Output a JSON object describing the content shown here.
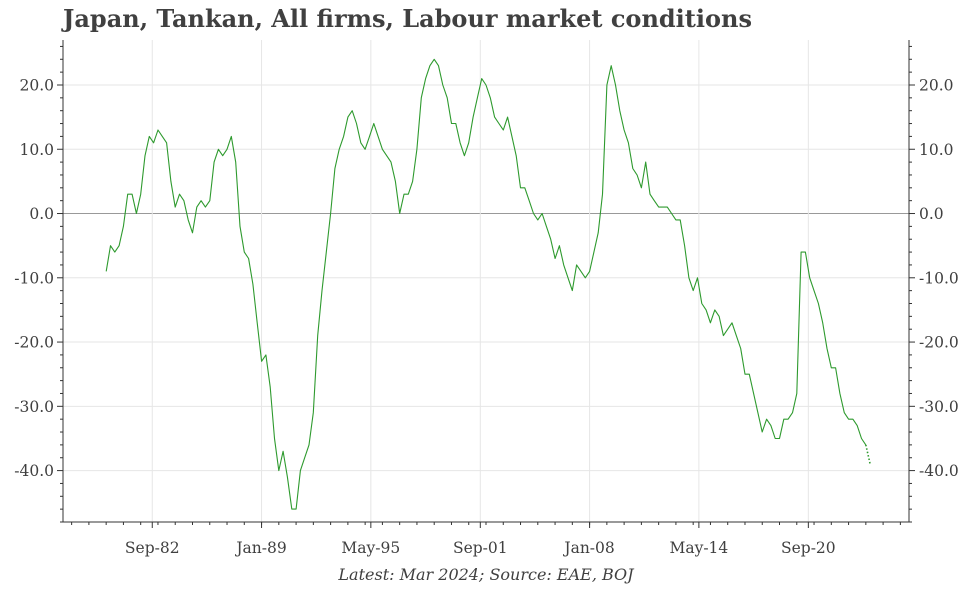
{
  "title": "Japan, Tankan, All firms, Labour market conditions",
  "footnote": "Latest: Mar 2024; Source: EAE, BOJ",
  "colors": {
    "line": "#2e9a2e",
    "axis": "#333333",
    "grid": "#e6e6e6",
    "zero": "#999999",
    "text": "#404040"
  },
  "chart_data": {
    "type": "line",
    "title": "Japan, Tankan, All firms, Labour market conditions",
    "xlabel": "",
    "ylabel": "",
    "ylim": [
      -48,
      27
    ],
    "xlim": [
      1977.5,
      2026.5
    ],
    "grid": true,
    "legend": "none",
    "y_ticks": [
      -40,
      -30,
      -20,
      -10,
      0,
      10,
      20
    ],
    "y_tick_labels": [
      "-40.0",
      "-30.0",
      "-20.0",
      "-10.0",
      "0.0",
      "10.0",
      "20.0"
    ],
    "x_ticks": [
      1982.67,
      1989.0,
      1995.33,
      2001.67,
      2008.0,
      2014.33,
      2020.67
    ],
    "x_tick_labels": [
      "Sep-82",
      "Jan-89",
      "May-95",
      "Sep-01",
      "Jan-08",
      "May-14",
      "Sep-20"
    ],
    "series": [
      {
        "values": [
          [
            1980.0,
            -9
          ],
          [
            1980.25,
            -5
          ],
          [
            1980.5,
            -6
          ],
          [
            1980.75,
            -5
          ],
          [
            1981.0,
            -2
          ],
          [
            1981.25,
            3
          ],
          [
            1981.5,
            3
          ],
          [
            1981.75,
            0
          ],
          [
            1982.0,
            3
          ],
          [
            1982.25,
            9
          ],
          [
            1982.5,
            12
          ],
          [
            1982.75,
            11
          ],
          [
            1983.0,
            13
          ],
          [
            1983.25,
            12
          ],
          [
            1983.5,
            11
          ],
          [
            1983.75,
            5
          ],
          [
            1984.0,
            1
          ],
          [
            1984.25,
            3
          ],
          [
            1984.5,
            2
          ],
          [
            1984.75,
            -1
          ],
          [
            1985.0,
            -3
          ],
          [
            1985.25,
            1
          ],
          [
            1985.5,
            2
          ],
          [
            1985.75,
            1
          ],
          [
            1986.0,
            2
          ],
          [
            1986.25,
            8
          ],
          [
            1986.5,
            10
          ],
          [
            1986.75,
            9
          ],
          [
            1987.0,
            10
          ],
          [
            1987.25,
            12
          ],
          [
            1987.5,
            8
          ],
          [
            1987.75,
            -2
          ],
          [
            1988.0,
            -6
          ],
          [
            1988.25,
            -7
          ],
          [
            1988.5,
            -11
          ],
          [
            1988.75,
            -17
          ],
          [
            1989.0,
            -23
          ],
          [
            1989.25,
            -22
          ],
          [
            1989.5,
            -27
          ],
          [
            1989.75,
            -35
          ],
          [
            1990.0,
            -40
          ],
          [
            1990.25,
            -37
          ],
          [
            1990.5,
            -41
          ],
          [
            1990.75,
            -46
          ],
          [
            1991.0,
            -46
          ],
          [
            1991.25,
            -40
          ],
          [
            1991.5,
            -38
          ],
          [
            1991.75,
            -36
          ],
          [
            1992.0,
            -31
          ],
          [
            1992.25,
            -19
          ],
          [
            1992.5,
            -12
          ],
          [
            1992.75,
            -6
          ],
          [
            1993.0,
            0
          ],
          [
            1993.25,
            7
          ],
          [
            1993.5,
            10
          ],
          [
            1993.75,
            12
          ],
          [
            1994.0,
            15
          ],
          [
            1994.25,
            16
          ],
          [
            1994.5,
            14
          ],
          [
            1994.75,
            11
          ],
          [
            1995.0,
            10
          ],
          [
            1995.25,
            12
          ],
          [
            1995.5,
            14
          ],
          [
            1995.75,
            12
          ],
          [
            1996.0,
            10
          ],
          [
            1996.25,
            9
          ],
          [
            1996.5,
            8
          ],
          [
            1996.75,
            5
          ],
          [
            1997.0,
            0
          ],
          [
            1997.25,
            3
          ],
          [
            1997.5,
            3
          ],
          [
            1997.75,
            5
          ],
          [
            1998.0,
            10
          ],
          [
            1998.25,
            18
          ],
          [
            1998.5,
            21
          ],
          [
            1998.75,
            23
          ],
          [
            1999.0,
            24
          ],
          [
            1999.25,
            23
          ],
          [
            1999.5,
            20
          ],
          [
            1999.75,
            18
          ],
          [
            2000.0,
            14
          ],
          [
            2000.25,
            14
          ],
          [
            2000.5,
            11
          ],
          [
            2000.75,
            9
          ],
          [
            2001.0,
            11
          ],
          [
            2001.25,
            15
          ],
          [
            2001.5,
            18
          ],
          [
            2001.75,
            21
          ],
          [
            2002.0,
            20
          ],
          [
            2002.25,
            18
          ],
          [
            2002.5,
            15
          ],
          [
            2002.75,
            14
          ],
          [
            2003.0,
            13
          ],
          [
            2003.25,
            15
          ],
          [
            2003.5,
            12
          ],
          [
            2003.75,
            9
          ],
          [
            2004.0,
            4
          ],
          [
            2004.25,
            4
          ],
          [
            2004.5,
            2
          ],
          [
            2004.75,
            0
          ],
          [
            2005.0,
            -1
          ],
          [
            2005.25,
            0
          ],
          [
            2005.5,
            -2
          ],
          [
            2005.75,
            -4
          ],
          [
            2006.0,
            -7
          ],
          [
            2006.25,
            -5
          ],
          [
            2006.5,
            -8
          ],
          [
            2006.75,
            -10
          ],
          [
            2007.0,
            -12
          ],
          [
            2007.25,
            -8
          ],
          [
            2007.5,
            -9
          ],
          [
            2007.75,
            -10
          ],
          [
            2008.0,
            -9
          ],
          [
            2008.25,
            -6
          ],
          [
            2008.5,
            -3
          ],
          [
            2008.75,
            3
          ],
          [
            2009.0,
            20
          ],
          [
            2009.25,
            23
          ],
          [
            2009.5,
            20
          ],
          [
            2009.75,
            16
          ],
          [
            2010.0,
            13
          ],
          [
            2010.25,
            11
          ],
          [
            2010.5,
            7
          ],
          [
            2010.75,
            6
          ],
          [
            2011.0,
            4
          ],
          [
            2011.25,
            8
          ],
          [
            2011.5,
            3
          ],
          [
            2011.75,
            2
          ],
          [
            2012.0,
            1
          ],
          [
            2012.25,
            1
          ],
          [
            2012.5,
            1
          ],
          [
            2012.75,
            0
          ],
          [
            2013.0,
            -1
          ],
          [
            2013.25,
            -1
          ],
          [
            2013.5,
            -5
          ],
          [
            2013.75,
            -10
          ],
          [
            2014.0,
            -12
          ],
          [
            2014.25,
            -10
          ],
          [
            2014.5,
            -14
          ],
          [
            2014.75,
            -15
          ],
          [
            2015.0,
            -17
          ],
          [
            2015.25,
            -15
          ],
          [
            2015.5,
            -16
          ],
          [
            2015.75,
            -19
          ],
          [
            2016.0,
            -18
          ],
          [
            2016.25,
            -17
          ],
          [
            2016.5,
            -19
          ],
          [
            2016.75,
            -21
          ],
          [
            2017.0,
            -25
          ],
          [
            2017.25,
            -25
          ],
          [
            2017.5,
            -28
          ],
          [
            2017.75,
            -31
          ],
          [
            2018.0,
            -34
          ],
          [
            2018.25,
            -32
          ],
          [
            2018.5,
            -33
          ],
          [
            2018.75,
            -35
          ],
          [
            2019.0,
            -35
          ],
          [
            2019.25,
            -32
          ],
          [
            2019.5,
            -32
          ],
          [
            2019.75,
            -31
          ],
          [
            2020.0,
            -28
          ],
          [
            2020.25,
            -6
          ],
          [
            2020.5,
            -6
          ],
          [
            2020.75,
            -10
          ],
          [
            2021.0,
            -12
          ],
          [
            2021.25,
            -14
          ],
          [
            2021.5,
            -17
          ],
          [
            2021.75,
            -21
          ],
          [
            2022.0,
            -24
          ],
          [
            2022.25,
            -24
          ],
          [
            2022.5,
            -28
          ],
          [
            2022.75,
            -31
          ],
          [
            2023.0,
            -32
          ],
          [
            2023.25,
            -32
          ],
          [
            2023.5,
            -33
          ],
          [
            2023.75,
            -35
          ],
          [
            2024.0,
            -36
          ],
          [
            2024.25,
            -39
          ]
        ]
      }
    ]
  }
}
